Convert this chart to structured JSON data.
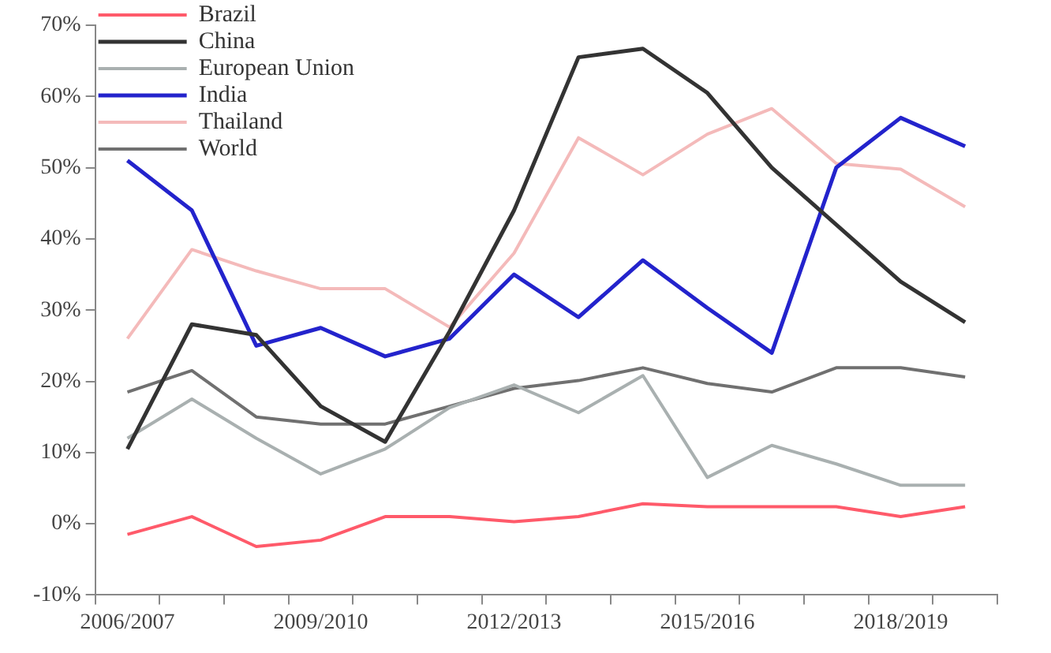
{
  "chart_data": {
    "type": "line",
    "categories": [
      "2006/2007",
      null,
      null,
      "2009/2010",
      null,
      null,
      "2012/2013",
      null,
      null,
      "2015/2016",
      null,
      null,
      "2018/2019",
      null
    ],
    "series": [
      {
        "name": "Brazil",
        "color": "#ff5a6a",
        "values": [
          -1.5,
          1,
          -3.2,
          -2.3,
          1,
          1,
          0.3,
          1,
          2.8,
          2.4,
          2.4,
          2.4,
          1,
          2.4
        ]
      },
      {
        "name": "China",
        "color": "#333333",
        "values": [
          10.5,
          28,
          26.5,
          16.5,
          11.5,
          27,
          44,
          65.5,
          66.7,
          60.5,
          50,
          42,
          34,
          28.3
        ]
      },
      {
        "name": "European Union",
        "color": "#a9b0b0",
        "values": [
          12,
          17.5,
          12,
          7,
          10.5,
          16.3,
          19.5,
          15.6,
          20.8,
          6.5,
          11,
          8.4,
          5.4,
          5.4
        ]
      },
      {
        "name": "India",
        "color": "#2323cc",
        "values": [
          51,
          44,
          25,
          27.5,
          23.5,
          26,
          35,
          29,
          37,
          30.3,
          24,
          50,
          57,
          53
        ]
      },
      {
        "name": "Thailand",
        "color": "#f4baba",
        "values": [
          26,
          38.5,
          35.5,
          33,
          33,
          27.6,
          38,
          54.2,
          49,
          54.7,
          58.3,
          50.6,
          49.8,
          44.5
        ]
      },
      {
        "name": "World",
        "color": "#707070",
        "values": [
          18.5,
          21.5,
          15,
          14,
          14,
          16.5,
          19,
          20.1,
          21.9,
          19.7,
          18.5,
          21.9,
          21.9,
          20.6
        ]
      }
    ],
    "ylim": [
      -10,
      70
    ],
    "yticks": [
      {
        "value": -10,
        "label": "-10%"
      },
      {
        "value": 0,
        "label": "0%"
      },
      {
        "value": 10,
        "label": "10%"
      },
      {
        "value": 20,
        "label": "20%"
      },
      {
        "value": 30,
        "label": "30%"
      },
      {
        "value": 40,
        "label": "40%"
      },
      {
        "value": 50,
        "label": "50%"
      },
      {
        "value": 60,
        "label": "60%"
      },
      {
        "value": 70,
        "label": "70%"
      }
    ],
    "grid": false,
    "legend": "top left",
    "marker": "none",
    "line_style": "solid"
  }
}
